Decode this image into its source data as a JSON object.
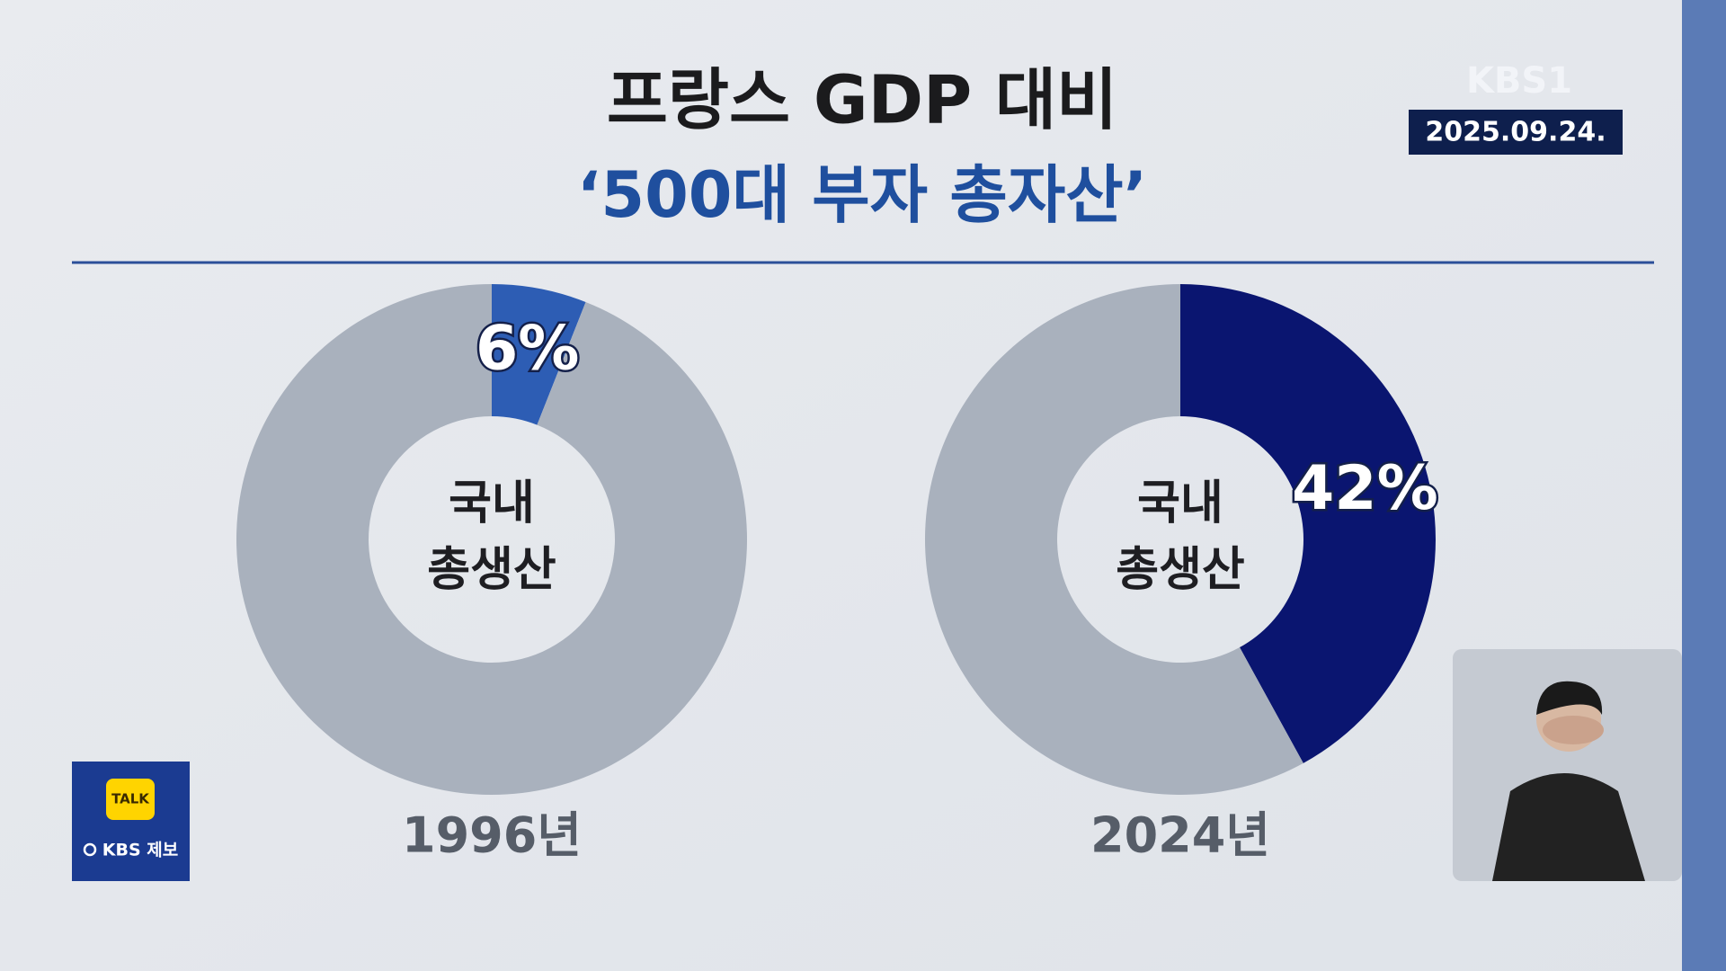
{
  "header": {
    "title": "프랑스 GDP 대비",
    "subtitle": "‘500대 부자 총자산’",
    "logo": "KBS1",
    "date": "2025.09.24."
  },
  "tip_box": {
    "icon": "TALK",
    "label": "KBS 제보"
  },
  "chart_data": [
    {
      "type": "donut",
      "title": "1996년",
      "center_label": [
        "국내",
        "총생산"
      ],
      "values": [
        6,
        94
      ],
      "value_labels": [
        "6%",
        null
      ],
      "colors": [
        "#2d5db4",
        "#a9b1bd"
      ]
    },
    {
      "type": "donut",
      "title": "2024년",
      "center_label": [
        "국내",
        "총생산"
      ],
      "values": [
        42,
        58
      ],
      "value_labels": [
        "42%",
        null
      ],
      "colors": [
        "#0a1570",
        "#a9b1bd"
      ]
    }
  ]
}
